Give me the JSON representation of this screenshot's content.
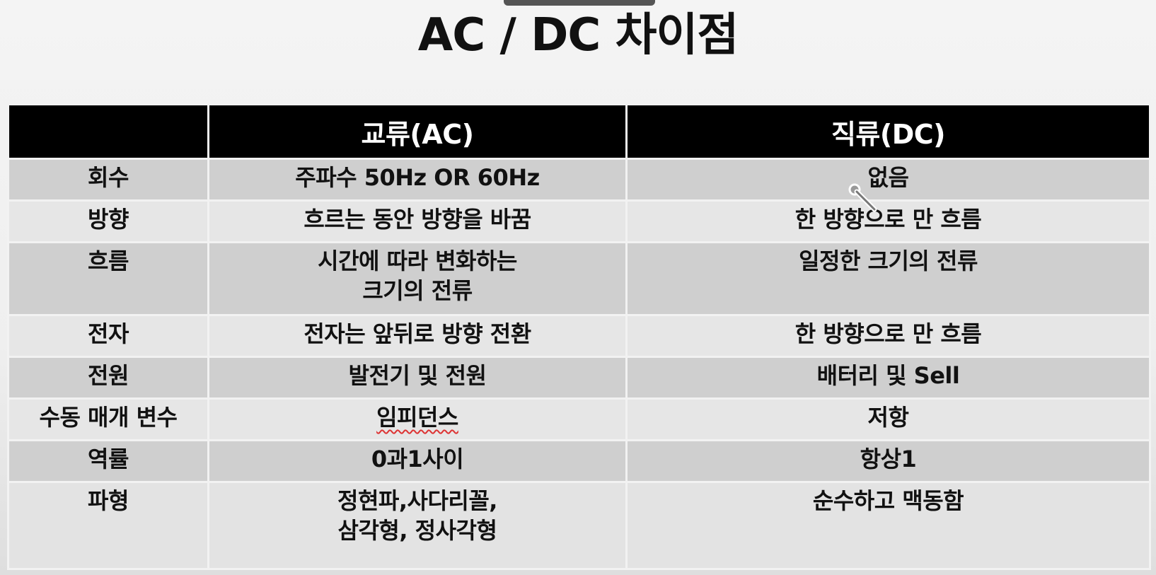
{
  "title": "AC / DC 차이점",
  "table": {
    "headers": [
      "",
      "교류(AC)",
      "직류(DC)"
    ],
    "rows": [
      {
        "label": "회수",
        "ac": [
          "주파수 50Hz OR 60Hz"
        ],
        "dc": [
          "없음"
        ]
      },
      {
        "label": "방향",
        "ac": [
          "흐르는 동안 방향을 바꿈"
        ],
        "dc": [
          "한 방향으로 만 흐름"
        ]
      },
      {
        "label": "흐름",
        "ac": [
          "시간에 따라 변화하는",
          "크기의 전류"
        ],
        "dc": [
          "일정한 크기의 전류"
        ]
      },
      {
        "label": "전자",
        "ac": [
          "전자는 앞뒤로 방향 전환"
        ],
        "dc": [
          "한 방향으로 만 흐름"
        ]
      },
      {
        "label": "전원",
        "ac": [
          "발전기 및 전원"
        ],
        "dc": [
          "배터리 및 Sell"
        ]
      },
      {
        "label": "수동 매개 변수",
        "ac": [
          "임피던스"
        ],
        "dc": [
          "저항"
        ]
      },
      {
        "label": "역률",
        "ac": [
          "0과1사이"
        ],
        "dc": [
          "항상1"
        ]
      },
      {
        "label": "파형",
        "ac": [
          "정현파,사다리꼴,",
          "삼각형, 정사각형"
        ],
        "dc": [
          "순수하고 맥동함"
        ]
      }
    ]
  },
  "cursor": {
    "icon": "pen-cursor-icon"
  }
}
